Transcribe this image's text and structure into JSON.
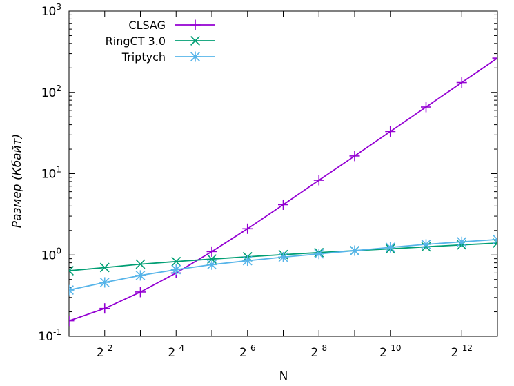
{
  "chart_data": {
    "type": "line",
    "xlabel": "N",
    "ylabel": "Размер (Кбайт)",
    "x_scale": "log2",
    "y_scale": "log10",
    "xlim": [
      2,
      8192
    ],
    "ylim": [
      0.1,
      1000
    ],
    "grid": false,
    "legend_position": "top-left",
    "x_ticks": [
      {
        "value": 4,
        "base": "2",
        "exp": "2"
      },
      {
        "value": 16,
        "base": "2",
        "exp": "4"
      },
      {
        "value": 64,
        "base": "2",
        "exp": "6"
      },
      {
        "value": 256,
        "base": "2",
        "exp": "8"
      },
      {
        "value": 1024,
        "base": "2",
        "exp": "10"
      },
      {
        "value": 4096,
        "base": "2",
        "exp": "12"
      }
    ],
    "y_ticks": [
      {
        "value": 0.1,
        "base": "10",
        "exp": "-1"
      },
      {
        "value": 1,
        "base": "10",
        "exp": "0"
      },
      {
        "value": 10,
        "base": "10",
        "exp": "1"
      },
      {
        "value": 100,
        "base": "10",
        "exp": "2"
      },
      {
        "value": 1000,
        "base": "10",
        "exp": "3"
      }
    ],
    "series": [
      {
        "name": "CLSAG",
        "color": "#9400d3",
        "marker": "plus",
        "x": [
          2,
          4,
          8,
          16,
          32,
          64,
          128,
          256,
          512,
          1024,
          2048,
          4096,
          8192
        ],
        "y": [
          0.155,
          0.22,
          0.35,
          0.6,
          1.1,
          2.1,
          4.15,
          8.3,
          16.5,
          33,
          66,
          132,
          264
        ]
      },
      {
        "name": "RingCT 3.0",
        "color": "#009e73",
        "marker": "cross",
        "x": [
          2,
          4,
          8,
          16,
          32,
          64,
          128,
          256,
          512,
          1024,
          2048,
          4096,
          8192
        ],
        "y": [
          0.64,
          0.7,
          0.77,
          0.83,
          0.89,
          0.95,
          1.01,
          1.07,
          1.13,
          1.19,
          1.26,
          1.33,
          1.4
        ]
      },
      {
        "name": "Triptych",
        "color": "#56b4e9",
        "marker": "star",
        "x": [
          2,
          4,
          8,
          16,
          32,
          64,
          128,
          256,
          512,
          1024,
          2048,
          4096,
          8192
        ],
        "y": [
          0.37,
          0.46,
          0.56,
          0.66,
          0.76,
          0.85,
          0.94,
          1.03,
          1.13,
          1.24,
          1.35,
          1.45,
          1.55
        ]
      }
    ]
  }
}
